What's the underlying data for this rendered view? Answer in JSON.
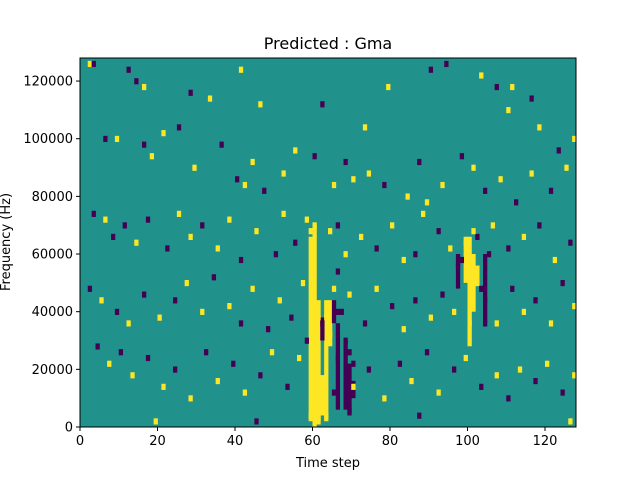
{
  "chart_data": {
    "type": "heatmap",
    "title": "Predicted : Gma",
    "xlabel": "Time step",
    "ylabel": "Frequency (Hz)",
    "xlim": [
      0,
      128
    ],
    "ylim": [
      0,
      128000
    ],
    "x_ticks": [
      0,
      20,
      40,
      60,
      80,
      100,
      120
    ],
    "y_ticks": [
      0,
      20000,
      40000,
      60000,
      80000,
      100000,
      120000
    ],
    "grid": false,
    "legend": "none",
    "colormap": {
      "background": "#21918c",
      "high": "#fde725",
      "low": "#440154"
    },
    "value_levels": {
      "low": -1,
      "background": 0,
      "high": 1
    },
    "n_time_steps": 128,
    "n_frequency_bins": 128,
    "nonzero_cells_time_frequency_value": [
      [
        2,
        126000,
        1
      ],
      [
        3,
        126000,
        -1
      ],
      [
        12,
        124000,
        -1
      ],
      [
        14,
        120000,
        -1
      ],
      [
        16,
        118000,
        1
      ],
      [
        28,
        116000,
        -1
      ],
      [
        33,
        114000,
        1
      ],
      [
        46,
        112000,
        1
      ],
      [
        41,
        124000,
        1
      ],
      [
        62,
        112000,
        -1
      ],
      [
        73,
        104000,
        1
      ],
      [
        79,
        118000,
        1
      ],
      [
        90,
        124000,
        -1
      ],
      [
        94,
        126000,
        -1
      ],
      [
        103,
        122000,
        1
      ],
      [
        107,
        118000,
        -1
      ],
      [
        110,
        110000,
        1
      ],
      [
        111,
        118000,
        1
      ],
      [
        116,
        114000,
        -1
      ],
      [
        118,
        104000,
        1
      ],
      [
        123,
        96000,
        -1
      ],
      [
        127,
        100000,
        1
      ],
      [
        6,
        100000,
        -1
      ],
      [
        9,
        100000,
        1
      ],
      [
        16,
        98000,
        -1
      ],
      [
        18,
        94000,
        1
      ],
      [
        21,
        102000,
        1
      ],
      [
        25,
        104000,
        -1
      ],
      [
        29,
        90000,
        1
      ],
      [
        36,
        98000,
        -1
      ],
      [
        40,
        86000,
        -1
      ],
      [
        42,
        84000,
        1
      ],
      [
        44,
        92000,
        1
      ],
      [
        47,
        82000,
        -1
      ],
      [
        52,
        88000,
        1
      ],
      [
        55,
        96000,
        1
      ],
      [
        60,
        94000,
        -1
      ],
      [
        65,
        84000,
        1
      ],
      [
        68,
        92000,
        -1
      ],
      [
        70,
        86000,
        1
      ],
      [
        74,
        88000,
        1
      ],
      [
        78,
        84000,
        -1
      ],
      [
        84,
        80000,
        1
      ],
      [
        87,
        92000,
        -1
      ],
      [
        89,
        78000,
        1
      ],
      [
        93,
        84000,
        1
      ],
      [
        98,
        94000,
        -1
      ],
      [
        101,
        90000,
        1
      ],
      [
        104,
        82000,
        -1
      ],
      [
        108,
        86000,
        1
      ],
      [
        112,
        78000,
        -1
      ],
      [
        116,
        88000,
        1
      ],
      [
        121,
        82000,
        -1
      ],
      [
        125,
        90000,
        1
      ],
      [
        3,
        74000,
        -1
      ],
      [
        6,
        72000,
        1
      ],
      [
        8,
        66000,
        -1
      ],
      [
        11,
        70000,
        -1
      ],
      [
        14,
        64000,
        1
      ],
      [
        17,
        72000,
        -1
      ],
      [
        22,
        62000,
        -1
      ],
      [
        25,
        74000,
        1
      ],
      [
        28,
        66000,
        1
      ],
      [
        31,
        70000,
        -1
      ],
      [
        35,
        62000,
        1
      ],
      [
        38,
        72000,
        1
      ],
      [
        41,
        58000,
        -1
      ],
      [
        45,
        68000,
        1
      ],
      [
        50,
        60000,
        -1
      ],
      [
        52,
        74000,
        1
      ],
      [
        55,
        64000,
        -1
      ],
      [
        58,
        72000,
        1
      ],
      [
        66,
        70000,
        -1
      ],
      [
        68,
        60000,
        1
      ],
      [
        72,
        66000,
        1
      ],
      [
        76,
        62000,
        -1
      ],
      [
        80,
        70000,
        1
      ],
      [
        83,
        58000,
        1
      ],
      [
        86,
        60000,
        -1
      ],
      [
        88,
        74000,
        1
      ],
      [
        92,
        68000,
        -1
      ],
      [
        95,
        62000,
        1
      ],
      [
        98,
        58000,
        -1
      ],
      [
        102,
        66000,
        -1
      ],
      [
        106,
        70000,
        1
      ],
      [
        110,
        62000,
        -1
      ],
      [
        114,
        66000,
        1
      ],
      [
        118,
        70000,
        -1
      ],
      [
        122,
        58000,
        1
      ],
      [
        126,
        64000,
        -1
      ],
      [
        2,
        48000,
        -1
      ],
      [
        5,
        44000,
        1
      ],
      [
        9,
        40000,
        -1
      ],
      [
        12,
        36000,
        1
      ],
      [
        16,
        46000,
        -1
      ],
      [
        20,
        38000,
        1
      ],
      [
        24,
        44000,
        -1
      ],
      [
        27,
        50000,
        1
      ],
      [
        31,
        40000,
        1
      ],
      [
        34,
        52000,
        -1
      ],
      [
        38,
        42000,
        1
      ],
      [
        41,
        36000,
        -1
      ],
      [
        44,
        48000,
        1
      ],
      [
        48,
        34000,
        -1
      ],
      [
        51,
        44000,
        1
      ],
      [
        54,
        38000,
        -1
      ],
      [
        57,
        50000,
        1
      ],
      [
        66,
        40000,
        -1
      ],
      [
        69,
        46000,
        1
      ],
      [
        73,
        36000,
        -1
      ],
      [
        76,
        48000,
        1
      ],
      [
        80,
        42000,
        -1
      ],
      [
        83,
        34000,
        1
      ],
      [
        86,
        44000,
        -1
      ],
      [
        90,
        38000,
        1
      ],
      [
        93,
        46000,
        -1
      ],
      [
        96,
        40000,
        1
      ],
      [
        104,
        44000,
        -1
      ],
      [
        107,
        36000,
        1
      ],
      [
        111,
        48000,
        -1
      ],
      [
        114,
        40000,
        1
      ],
      [
        117,
        44000,
        -1
      ],
      [
        121,
        36000,
        1
      ],
      [
        124,
        50000,
        -1
      ],
      [
        127,
        42000,
        1
      ],
      [
        4,
        28000,
        -1
      ],
      [
        7,
        22000,
        1
      ],
      [
        10,
        26000,
        -1
      ],
      [
        13,
        18000,
        1
      ],
      [
        17,
        24000,
        -1
      ],
      [
        21,
        14000,
        1
      ],
      [
        24,
        20000,
        -1
      ],
      [
        28,
        10000,
        1
      ],
      [
        32,
        26000,
        -1
      ],
      [
        35,
        16000,
        1
      ],
      [
        39,
        22000,
        -1
      ],
      [
        42,
        12000,
        1
      ],
      [
        46,
        18000,
        -1
      ],
      [
        49,
        26000,
        1
      ],
      [
        53,
        14000,
        -1
      ],
      [
        56,
        24000,
        1
      ],
      [
        66,
        24000,
        -1
      ],
      [
        70,
        14000,
        1
      ],
      [
        74,
        20000,
        -1
      ],
      [
        78,
        10000,
        1
      ],
      [
        82,
        22000,
        -1
      ],
      [
        85,
        16000,
        1
      ],
      [
        89,
        26000,
        -1
      ],
      [
        92,
        12000,
        1
      ],
      [
        96,
        20000,
        -1
      ],
      [
        99,
        24000,
        1
      ],
      [
        103,
        14000,
        -1
      ],
      [
        107,
        18000,
        1
      ],
      [
        110,
        10000,
        -1
      ],
      [
        113,
        20000,
        1
      ],
      [
        117,
        16000,
        -1
      ],
      [
        120,
        22000,
        1
      ],
      [
        124,
        12000,
        -1
      ],
      [
        127,
        18000,
        1
      ],
      [
        19,
        2000,
        1
      ],
      [
        45,
        2000,
        -1
      ],
      [
        61,
        2000,
        1
      ],
      [
        87,
        4000,
        -1
      ],
      [
        126,
        2000,
        1
      ]
    ],
    "band_cells_time_frequency_value": [
      [
        59,
        4000,
        1
      ],
      [
        59,
        68000,
        1
      ],
      [
        60,
        4000,
        1
      ],
      [
        60,
        70000,
        1
      ],
      [
        61,
        4000,
        1
      ],
      [
        61,
        38000,
        1
      ],
      [
        63,
        4000,
        1
      ],
      [
        63,
        38000,
        1
      ],
      [
        64,
        32000,
        1
      ],
      [
        64,
        68000,
        1
      ],
      [
        65,
        48000,
        1
      ],
      [
        58,
        30000,
        -1
      ],
      [
        62,
        36000,
        -1
      ],
      [
        65,
        12000,
        -1
      ],
      [
        66,
        54000,
        -1
      ],
      [
        67,
        40000,
        -1
      ],
      [
        68,
        14000,
        -1
      ],
      [
        68,
        30000,
        -1
      ],
      [
        69,
        6000,
        -1
      ],
      [
        69,
        26000,
        -1
      ],
      [
        70,
        22000,
        -1
      ],
      [
        99,
        64000,
        1
      ],
      [
        100,
        54000,
        1
      ],
      [
        101,
        68000,
        1
      ],
      [
        102,
        50000,
        1
      ],
      [
        100,
        36000,
        1
      ],
      [
        100,
        44000,
        1
      ],
      [
        97,
        56000,
        -1
      ],
      [
        103,
        48000,
        -1
      ],
      [
        104,
        36000,
        -1
      ],
      [
        105,
        60000,
        -1
      ]
    ]
  }
}
